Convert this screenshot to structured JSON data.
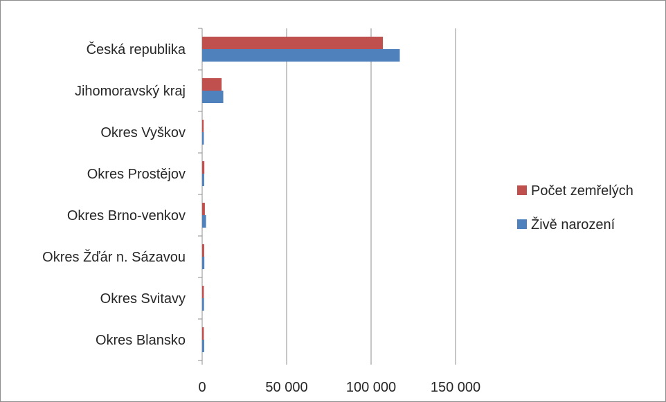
{
  "chart_data": {
    "type": "bar",
    "orientation": "horizontal",
    "categories": [
      "Česká republika",
      "Jihomoravský kraj",
      "Okres Vyškov",
      "Okres Prostějov",
      "Okres Brno-venkov",
      "Okres Žďár n. Sázavou",
      "Okres Svitavy",
      "Okres Blansko"
    ],
    "series": [
      {
        "name": "Počet zemřelých",
        "color": "#c0504d",
        "values": [
          107000,
          11500,
          900,
          1300,
          1600,
          1200,
          1000,
          1000
        ]
      },
      {
        "name": "Živě narození",
        "color": "#4f81bd",
        "values": [
          117000,
          12500,
          1000,
          1200,
          2300,
          1300,
          1100,
          1200
        ]
      }
    ],
    "xlim": [
      0,
      150000
    ],
    "xticks": [
      0,
      50000,
      100000,
      150000
    ],
    "xtick_labels": [
      "0",
      "50 000",
      "100 000",
      "150 000"
    ],
    "grid": "vertical major gridlines",
    "legend_position": "right"
  }
}
